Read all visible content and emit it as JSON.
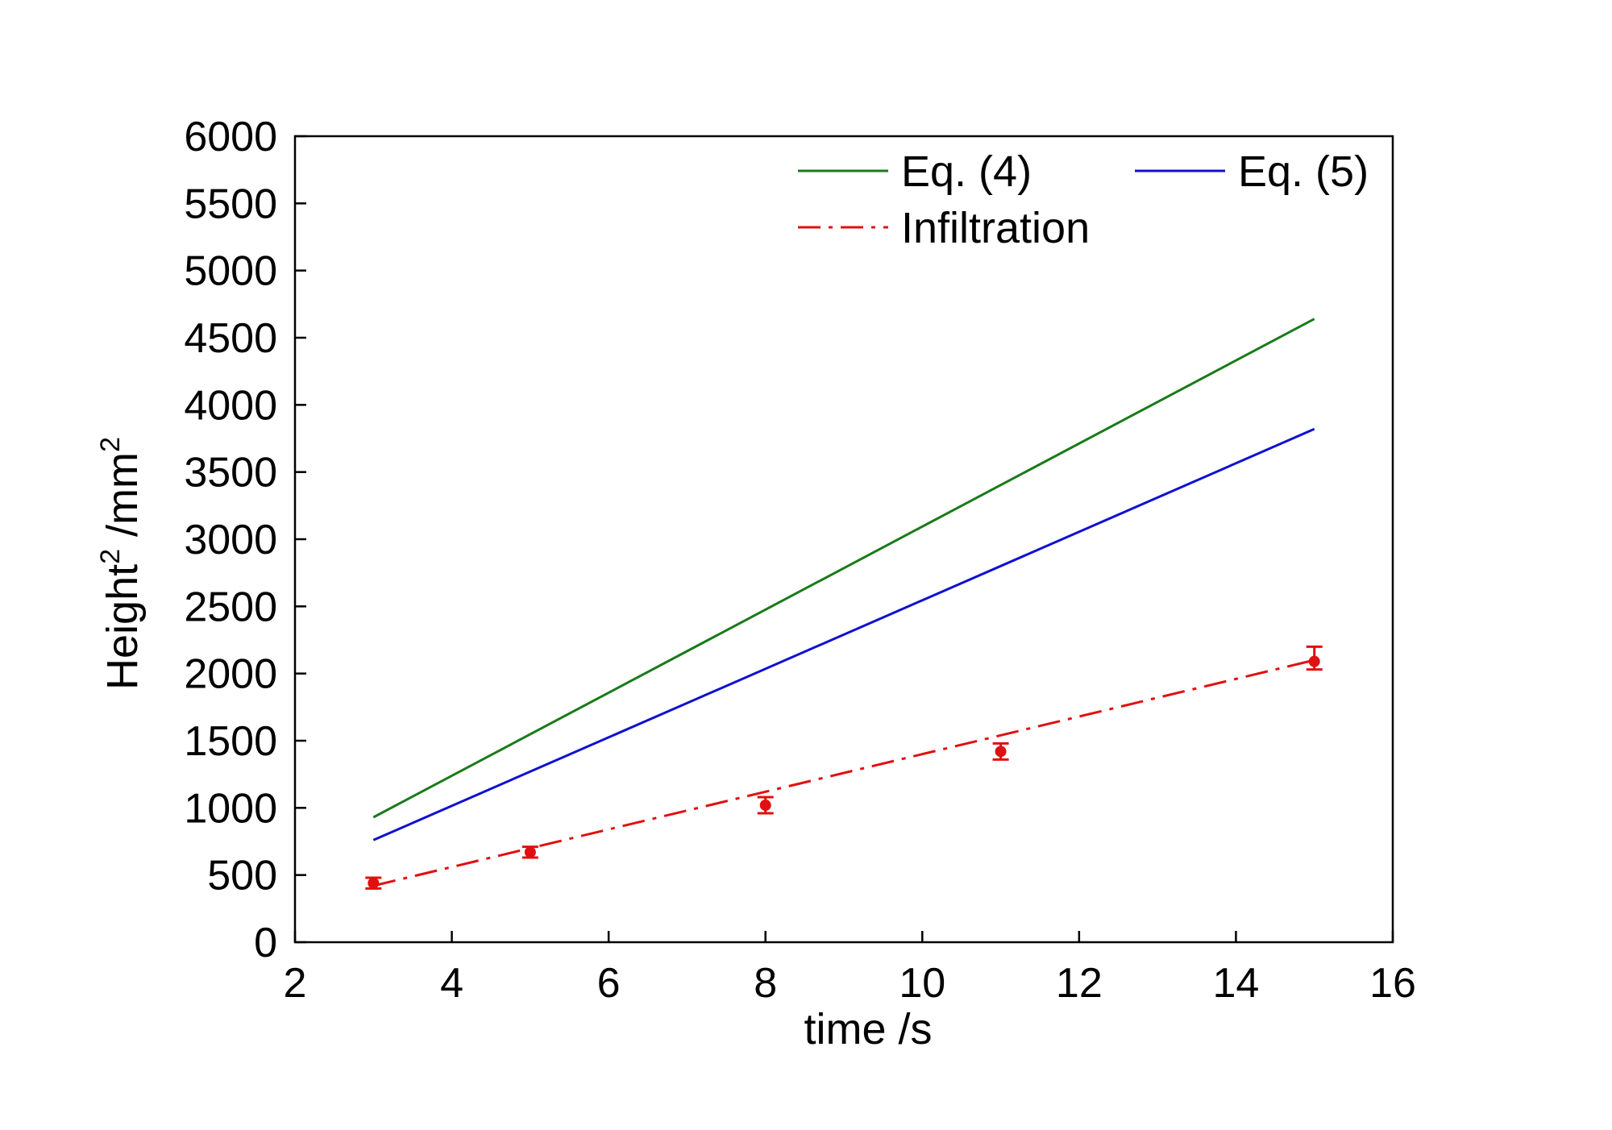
{
  "chart_data": {
    "type": "line",
    "xlabel": "time /s",
    "ylabel": "Height",
    "ylabel_sup": "2",
    "ylabel_unit": " /mm",
    "ylabel_unit_sup": "2",
    "xlim": [
      2,
      16
    ],
    "ylim": [
      0,
      6000
    ],
    "xticks": [
      2,
      4,
      6,
      8,
      10,
      12,
      14,
      16
    ],
    "yticks": [
      0,
      500,
      1000,
      1500,
      2000,
      2500,
      3000,
      3500,
      4000,
      4500,
      5000,
      5500,
      6000
    ],
    "grid": false,
    "legend_position": "top-right",
    "series": [
      {
        "name": "Eq. (4)",
        "color": "#1a7a1a",
        "style": "solid",
        "x": [
          3,
          15
        ],
        "y": [
          930,
          4640
        ]
      },
      {
        "name": "Eq. (5)",
        "color": "#1010d0",
        "style": "solid",
        "x": [
          3,
          15
        ],
        "y": [
          760,
          3820
        ]
      },
      {
        "name": "Infiltration",
        "color": "#e01010",
        "style": "dash-dot",
        "x": [
          3,
          15
        ],
        "y": [
          420,
          2100
        ]
      }
    ],
    "measurements": {
      "color": "#e01010",
      "points": [
        {
          "x": 3,
          "y": 440,
          "err_low": 40,
          "err_high": 40
        },
        {
          "x": 5,
          "y": 670,
          "err_low": 40,
          "err_high": 40
        },
        {
          "x": 8,
          "y": 1020,
          "err_low": 60,
          "err_high": 60
        },
        {
          "x": 11,
          "y": 1420,
          "err_low": 60,
          "err_high": 60
        },
        {
          "x": 15,
          "y": 2090,
          "err_low": 60,
          "err_high": 110
        }
      ]
    }
  }
}
